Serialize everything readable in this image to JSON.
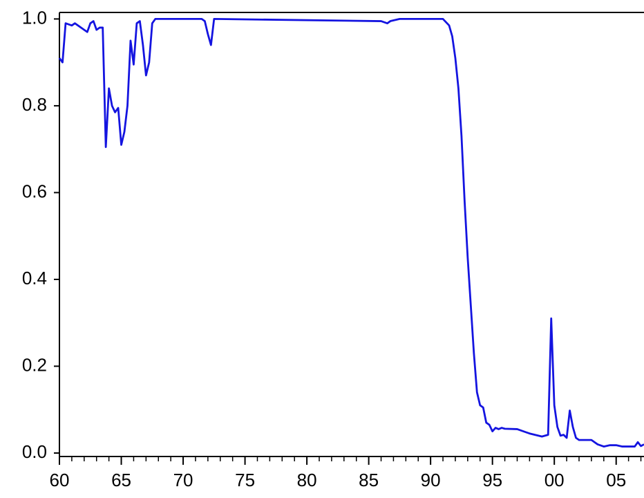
{
  "chart_data": {
    "type": "line",
    "x": [
      1960.0,
      1960.25,
      1960.5,
      1961.0,
      1961.25,
      1962.0,
      1962.25,
      1962.5,
      1962.75,
      1963.0,
      1963.25,
      1963.5,
      1963.75,
      1964.0,
      1964.25,
      1964.5,
      1964.75,
      1965.0,
      1965.25,
      1965.5,
      1965.75,
      1966.0,
      1966.25,
      1966.5,
      1966.75,
      1967.0,
      1967.25,
      1967.5,
      1967.75,
      1971.5,
      1971.75,
      1972.0,
      1972.25,
      1972.5,
      1986.0,
      1986.5,
      1986.75,
      1987.5,
      1991.0,
      1991.5,
      1991.75,
      1992.0,
      1992.25,
      1992.5,
      1992.75,
      1993.0,
      1993.25,
      1993.5,
      1993.75,
      1994.0,
      1994.25,
      1994.5,
      1994.75,
      1995.0,
      1995.25,
      1995.5,
      1995.75,
      1996.0,
      1997.0,
      1998.0,
      1999.0,
      1999.5,
      1999.75,
      2000.0,
      2000.25,
      2000.5,
      2000.75,
      2001.0,
      2001.25,
      2001.5,
      2001.75,
      2002.0,
      2003.0,
      2003.5,
      2004.0,
      2004.5,
      2005.0,
      2005.5,
      2006.0,
      2006.5,
      2006.75,
      2007.0,
      2007.25
    ],
    "series": [
      {
        "color": "#1414e0",
        "values": [
          0.91,
          0.9,
          0.99,
          0.985,
          0.99,
          0.975,
          0.97,
          0.99,
          0.995,
          0.975,
          0.98,
          0.98,
          0.705,
          0.84,
          0.8,
          0.785,
          0.795,
          0.71,
          0.74,
          0.8,
          0.95,
          0.895,
          0.99,
          0.995,
          0.94,
          0.87,
          0.9,
          0.99,
          1.0,
          1.0,
          0.995,
          0.965,
          0.94,
          1.0,
          0.995,
          0.99,
          0.995,
          1.0,
          1.0,
          0.985,
          0.96,
          0.91,
          0.84,
          0.73,
          0.58,
          0.45,
          0.34,
          0.23,
          0.14,
          0.11,
          0.105,
          0.07,
          0.065,
          0.05,
          0.058,
          0.055,
          0.058,
          0.056,
          0.055,
          0.045,
          0.038,
          0.042,
          0.31,
          0.11,
          0.06,
          0.04,
          0.042,
          0.035,
          0.098,
          0.06,
          0.035,
          0.03,
          0.03,
          0.02,
          0.015,
          0.018,
          0.018,
          0.015,
          0.015,
          0.015,
          0.025,
          0.016,
          0.02
        ]
      }
    ],
    "xlim": [
      1960,
      2007.25
    ],
    "xticks": [
      {
        "value": 1960,
        "label": "60"
      },
      {
        "value": 1965,
        "label": "65"
      },
      {
        "value": 1970,
        "label": "70"
      },
      {
        "value": 1975,
        "label": "75"
      },
      {
        "value": 1980,
        "label": "80"
      },
      {
        "value": 1985,
        "label": "85"
      },
      {
        "value": 1990,
        "label": "90"
      },
      {
        "value": 1995,
        "label": "95"
      },
      {
        "value": 2000,
        "label": "00"
      },
      {
        "value": 2005,
        "label": "05"
      }
    ],
    "xminorticks": [
      1961,
      1962,
      1963,
      1964,
      1966,
      1967,
      1968,
      1969,
      1971,
      1972,
      1973,
      1974,
      1976,
      1977,
      1978,
      1979,
      1981,
      1982,
      1983,
      1984,
      1986,
      1987,
      1988,
      1989,
      1991,
      1992,
      1993,
      1994,
      1996,
      1997,
      1998,
      1999,
      2001,
      2002,
      2003,
      2004,
      2006,
      2007
    ],
    "ylim": [
      -0.008,
      1.015
    ],
    "yticks": [
      {
        "value": 0,
        "label": "0.0"
      },
      0.2,
      0.4,
      0.6,
      0.8,
      {
        "value": 1,
        "label": "1.0"
      }
    ]
  }
}
